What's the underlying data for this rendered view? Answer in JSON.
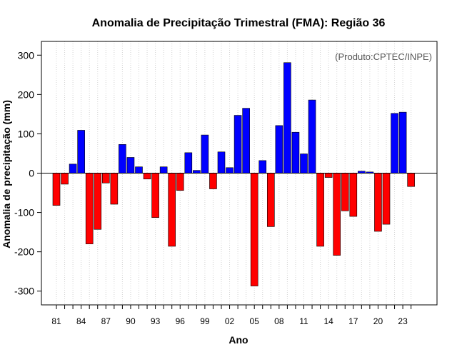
{
  "chart_data": {
    "type": "bar",
    "title": "Anomalia de Precipitação Trimestral (FMA): Região 36",
    "xlabel": "Ano",
    "ylabel": "Anomalia de precipitação (mm)",
    "credit": "(Produto:CPTEC/INPE)",
    "ylim": [
      -335,
      335
    ],
    "yticks": [
      -300,
      -200,
      -100,
      0,
      100,
      200,
      300
    ],
    "xtick_years": [
      "81",
      "84",
      "87",
      "90",
      "93",
      "96",
      "99",
      "02",
      "05",
      "08",
      "11",
      "14",
      "17",
      "20",
      "23"
    ],
    "grid": true,
    "colors": {
      "positive": "#0000ff",
      "negative": "#ff0000"
    },
    "categories": [
      "1981",
      "1982",
      "1983",
      "1984",
      "1985",
      "1986",
      "1987",
      "1988",
      "1989",
      "1990",
      "1991",
      "1992",
      "1993",
      "1994",
      "1995",
      "1996",
      "1997",
      "1998",
      "1999",
      "2000",
      "2001",
      "2002",
      "2003",
      "2004",
      "2005",
      "2006",
      "2007",
      "2008",
      "2009",
      "2010",
      "2011",
      "2012",
      "2013",
      "2014",
      "2015",
      "2016",
      "2017",
      "2018",
      "2019",
      "2020",
      "2021",
      "2022",
      "2023",
      "2024"
    ],
    "values": [
      -82,
      -28,
      23,
      109,
      -180,
      -143,
      -25,
      -79,
      73,
      40,
      16,
      -15,
      -113,
      16,
      -186,
      -44,
      52,
      7,
      97,
      -40,
      54,
      14,
      147,
      165,
      -287,
      32,
      -136,
      121,
      281,
      104,
      49,
      186,
      -186,
      -11,
      -209,
      -96,
      -110,
      5,
      3,
      -148,
      -130,
      152,
      155,
      -34
    ]
  }
}
